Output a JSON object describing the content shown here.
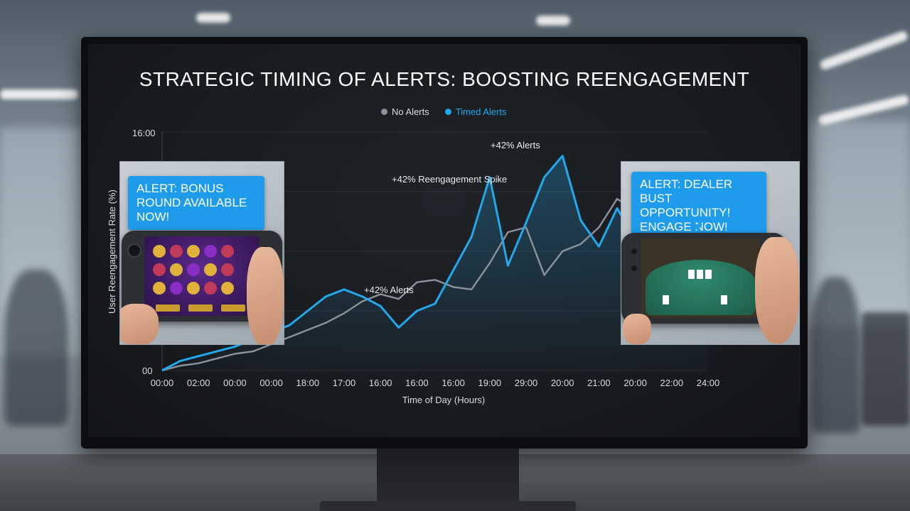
{
  "chart_data": {
    "type": "line",
    "title": "STRATEGIC TIMING OF ALERTS: BOOSTING REENGAGEMENT",
    "xlabel": "Time of Day (Hours)",
    "ylabel": "User Reengagement Rate (%)",
    "x_tick_labels": [
      "00:00",
      "02:00",
      "00:00",
      "00:00",
      "18:00",
      "17:00",
      "16:00",
      "16:00",
      "16:00",
      "19:00",
      "29:00",
      "20:00",
      "21:00",
      "20:00",
      "22:00",
      "24:00"
    ],
    "y_tick_labels": [
      "00",
      "16:00"
    ],
    "ylim": [
      0,
      100
    ],
    "grid": true,
    "legend": "top-center",
    "series": [
      {
        "name": "No Alerts",
        "color": "#8c939a",
        "x": [
          0,
          0.5,
          1,
          1.5,
          2,
          2.5,
          3,
          3.5,
          4,
          4.5,
          5,
          5.5,
          6,
          6.5,
          7,
          7.5,
          8,
          8.5,
          9,
          9.5,
          10,
          10.5,
          11,
          11.5,
          12,
          12.5,
          13,
          13.5,
          14,
          14.5,
          15
        ],
        "y": [
          0,
          2,
          3,
          5,
          7,
          8,
          11,
          14,
          17,
          20,
          24,
          29,
          32,
          30,
          37,
          38,
          35,
          34,
          45,
          58,
          60,
          40,
          50,
          53,
          60,
          72,
          67,
          57,
          50,
          55,
          45
        ]
      },
      {
        "name": "Timed Alerts",
        "color": "#23a8ec",
        "x": [
          0,
          0.5,
          1,
          1.5,
          2,
          2.5,
          3,
          3.5,
          4,
          4.5,
          5,
          5.5,
          6,
          6.5,
          7,
          7.5,
          8,
          8.5,
          9,
          9.5,
          10,
          10.5,
          11,
          11.5,
          12,
          12.5,
          13,
          13.5,
          14,
          14.5,
          15
        ],
        "y": [
          0,
          4,
          6,
          8,
          10,
          13,
          16,
          19,
          25,
          31,
          34,
          31,
          27,
          18,
          25,
          28,
          42,
          56,
          81,
          44,
          62,
          81,
          90,
          63,
          52,
          68,
          55,
          40,
          35,
          38,
          38
        ]
      }
    ],
    "annotations": [
      "+42% Alerts",
      "+42% Reengagement Spike",
      "+42% Alerts"
    ]
  },
  "insets": {
    "left_alert": "ALERT: BONUS ROUND AVAILABLE NOW!",
    "right_alert": "ALERT: DEALER BUST OPPORTUNITY! ENGAGE NOW!"
  },
  "colors": {
    "accent": "#23a8ec",
    "muted_series": "#8c939a",
    "screen_bg": "#181b1f"
  }
}
